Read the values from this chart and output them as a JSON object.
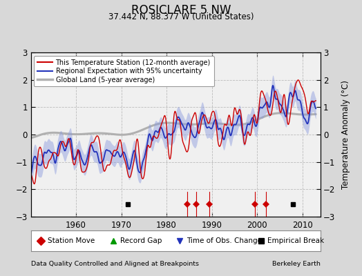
{
  "title": "ROSICLARE 5 NW",
  "subtitle": "37.442 N, 88.377 W (United States)",
  "ylabel": "Temperature Anomaly (°C)",
  "footer_left": "Data Quality Controlled and Aligned at Breakpoints",
  "footer_right": "Berkeley Earth",
  "xlim": [
    1950,
    2014
  ],
  "ylim": [
    -3,
    3
  ],
  "yticks": [
    -3,
    -2,
    -1,
    0,
    1,
    2,
    3
  ],
  "xticks": [
    1960,
    1970,
    1980,
    1990,
    2000,
    2010
  ],
  "bg_color": "#d8d8d8",
  "plot_bg_color": "#f0f0f0",
  "station_color": "#cc0000",
  "regional_color": "#2233bb",
  "regional_band_color": "#8899dd",
  "global_color": "#b0b0b0",
  "event_markers": {
    "station_moves": [
      1984.5,
      1986.5,
      1989.5,
      1999.5,
      2002.0
    ],
    "empirical_breaks": [
      1971.5,
      2008.0
    ]
  },
  "random_seed": 17
}
